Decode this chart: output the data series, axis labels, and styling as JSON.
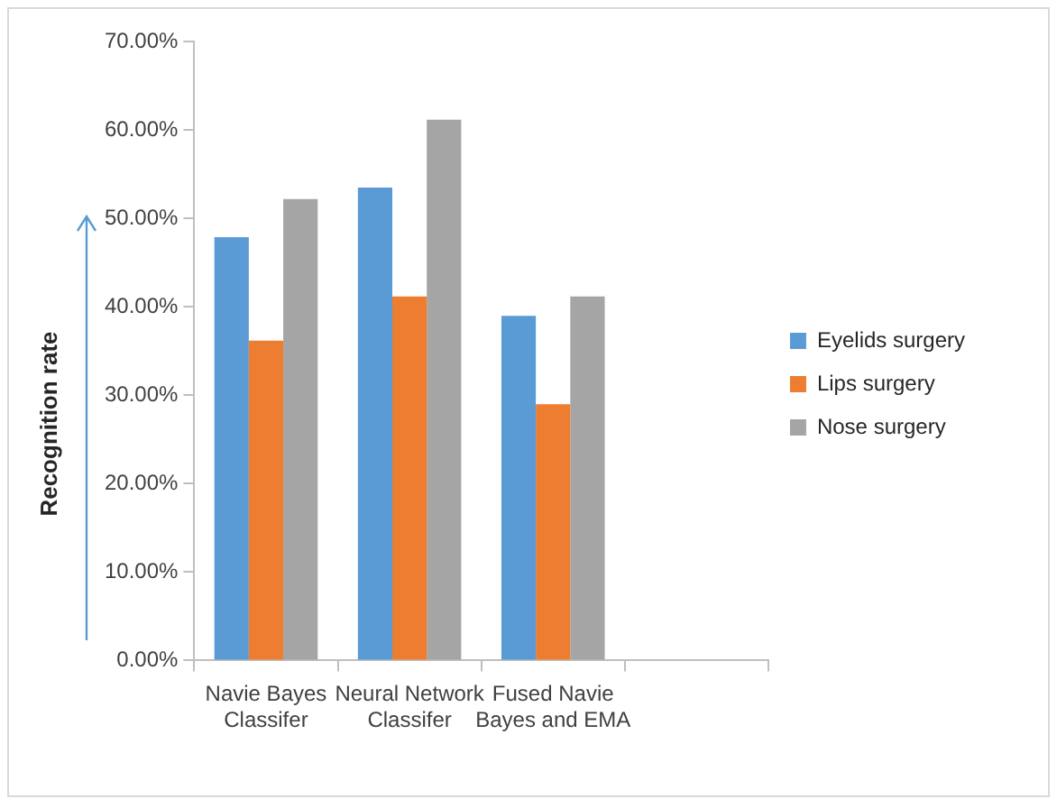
{
  "chart_data": {
    "type": "bar",
    "ylabel": "Recognition rate",
    "categories": [
      "Navie Bayes Classifer",
      "Neural Network Classifer",
      "Fused Navie Bayes and EMA",
      null
    ],
    "series": [
      {
        "name": "Eyelids surgery",
        "color": "#5b9bd5",
        "values": [
          47.9,
          53.5,
          39.0,
          null
        ]
      },
      {
        "name": "Lips surgery",
        "color": "#ed7d31",
        "values": [
          36.2,
          41.2,
          29.0,
          null
        ]
      },
      {
        "name": "Nose surgery",
        "color": "#a5a5a5",
        "values": [
          52.2,
          61.2,
          41.2,
          null
        ]
      }
    ],
    "ylim": [
      0,
      70
    ],
    "yticks": [
      {
        "value": 0,
        "label": "0.00%"
      },
      {
        "value": 10,
        "label": "10.00%"
      },
      {
        "value": 20,
        "label": "20.00%"
      },
      {
        "value": 30,
        "label": "30.00%"
      },
      {
        "value": 40,
        "label": "40.00%"
      },
      {
        "value": 50,
        "label": "50.00%"
      },
      {
        "value": 60,
        "label": "60.00%"
      },
      {
        "value": 70,
        "label": "70.00%"
      }
    ],
    "grid": false,
    "legend": "right"
  }
}
